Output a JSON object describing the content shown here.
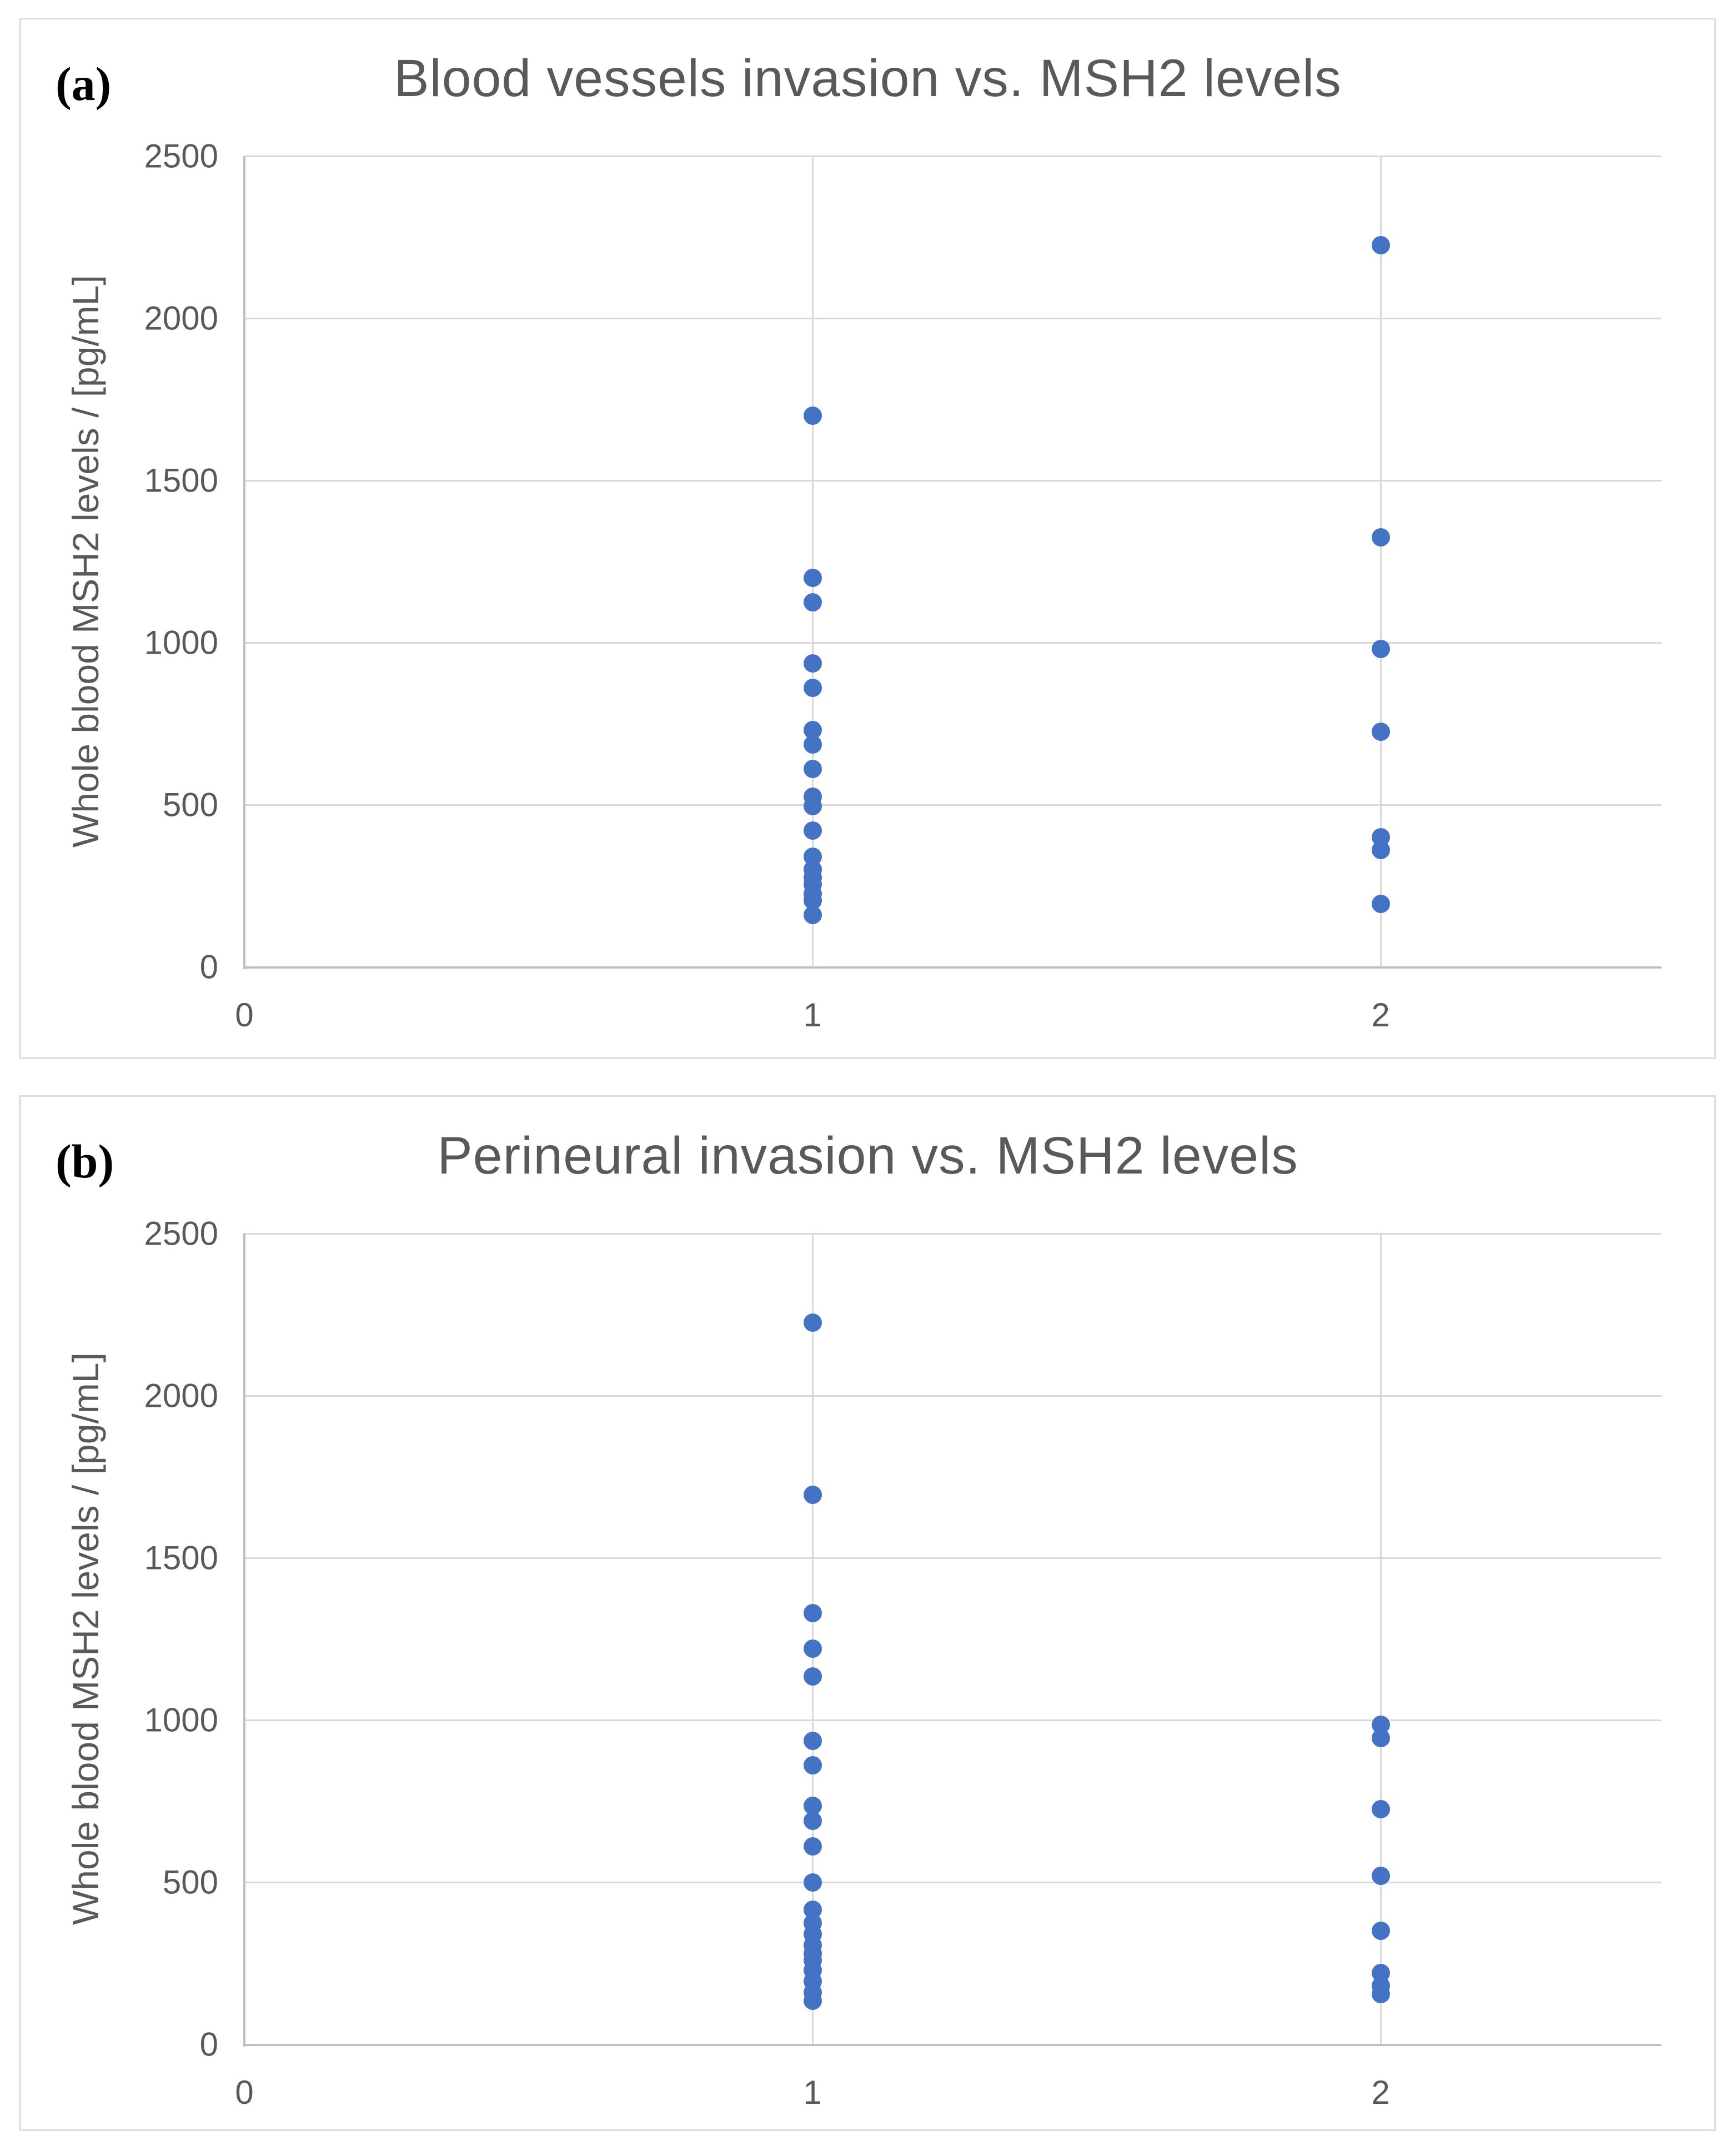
{
  "figure": {
    "panels": [
      {
        "label": "(a)",
        "title": "Blood vessels invasion vs. MSH2 levels",
        "y_axis_title": "Whole blood MSH2 levels / [pg/mL]"
      },
      {
        "label": "(b)",
        "title": "Perineural invasion vs. MSH2 levels",
        "y_axis_title": "Whole blood MSH2 levels / [pg/mL]"
      }
    ],
    "colors": {
      "marker": "#4472C4",
      "gridline": "#D9D9D9",
      "axis_line": "#BFBFBF",
      "text": "#595959",
      "panel_border": "#DCDCDC",
      "panel_label_text": "#000000"
    }
  },
  "chart_data": [
    {
      "type": "scatter",
      "title": "Blood vessels invasion vs. MSH2 levels",
      "xlabel": "",
      "ylabel": "Whole blood MSH2 levels / [pg/mL]",
      "xlim": [
        0,
        2.5
      ],
      "ylim": [
        0,
        2500
      ],
      "x_ticks": [
        0,
        1,
        2
      ],
      "y_ticks": [
        0,
        500,
        1000,
        1500,
        2000,
        2500
      ],
      "grid": true,
      "legend_position": "none",
      "marker_color": "#4472C4",
      "series": [
        {
          "name": "x=1",
          "x": 1,
          "values": [
            1700,
            1200,
            1125,
            935,
            860,
            730,
            685,
            610,
            525,
            495,
            420,
            340,
            300,
            275,
            255,
            225,
            205,
            160
          ]
        },
        {
          "name": "x=2",
          "x": 2,
          "values": [
            2225,
            1325,
            980,
            725,
            400,
            360,
            195
          ]
        }
      ]
    },
    {
      "type": "scatter",
      "title": "Perineural invasion vs. MSH2 levels",
      "xlabel": "",
      "ylabel": "Whole blood MSH2 levels / [pg/mL]",
      "xlim": [
        0,
        2.5
      ],
      "ylim": [
        0,
        2500
      ],
      "x_ticks": [
        0,
        1,
        2
      ],
      "y_ticks": [
        0,
        500,
        1000,
        1500,
        2000,
        2500
      ],
      "grid": true,
      "legend_position": "none",
      "marker_color": "#4472C4",
      "series": [
        {
          "name": "x=1",
          "x": 1,
          "values": [
            2225,
            1695,
            1330,
            1220,
            1135,
            935,
            860,
            735,
            690,
            610,
            500,
            415,
            375,
            340,
            305,
            280,
            260,
            228,
            195,
            160,
            135
          ]
        },
        {
          "name": "x=2",
          "x": 2,
          "values": [
            985,
            945,
            725,
            520,
            350,
            220,
            180,
            155
          ]
        }
      ]
    }
  ]
}
